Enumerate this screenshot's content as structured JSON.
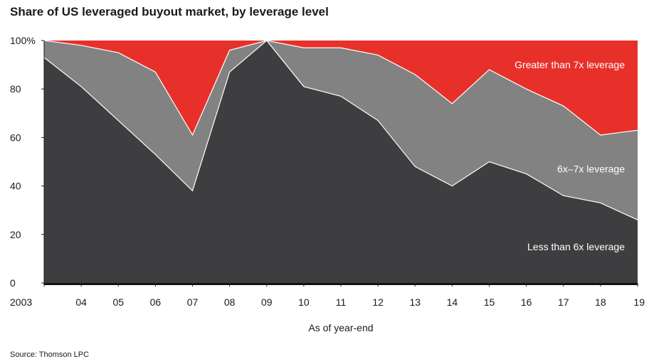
{
  "title": "Share of US leveraged buyout market, by leverage level",
  "source": "Source: Thomson LPC",
  "chart_data": {
    "type": "area",
    "stacked": true,
    "x": [
      "2003",
      "04",
      "05",
      "06",
      "07",
      "08",
      "09",
      "10",
      "11",
      "12",
      "13",
      "14",
      "15",
      "16",
      "17",
      "18",
      "19"
    ],
    "xlabel": "As of year-end",
    "ylabel": "",
    "ylim": [
      0,
      100
    ],
    "yticks": [
      0,
      20,
      40,
      60,
      80,
      100
    ],
    "ytick_labels": [
      "0",
      "20",
      "40",
      "60",
      "80",
      "100%"
    ],
    "grid": false,
    "series": [
      {
        "name": "Less than 6x leverage",
        "color": "#3e3e40",
        "label_color": "#ffffff",
        "values": [
          93,
          81,
          67,
          53,
          38,
          87,
          100,
          81,
          77,
          67,
          48,
          40,
          50,
          45,
          36,
          33,
          26
        ]
      },
      {
        "name": "6x–7x leverage",
        "color": "#828283",
        "label_color": "#ffffff",
        "values": [
          7,
          17,
          28,
          34,
          23,
          9,
          0,
          16,
          20,
          27,
          38,
          34,
          38,
          35,
          37,
          28,
          37
        ]
      },
      {
        "name": "Greater than 7x leverage",
        "color": "#e8302a",
        "label_color": "#ffffff",
        "values": [
          0,
          2,
          5,
          13,
          39,
          4,
          0,
          3,
          3,
          6,
          14,
          26,
          12,
          20,
          27,
          39,
          37
        ]
      }
    ]
  }
}
